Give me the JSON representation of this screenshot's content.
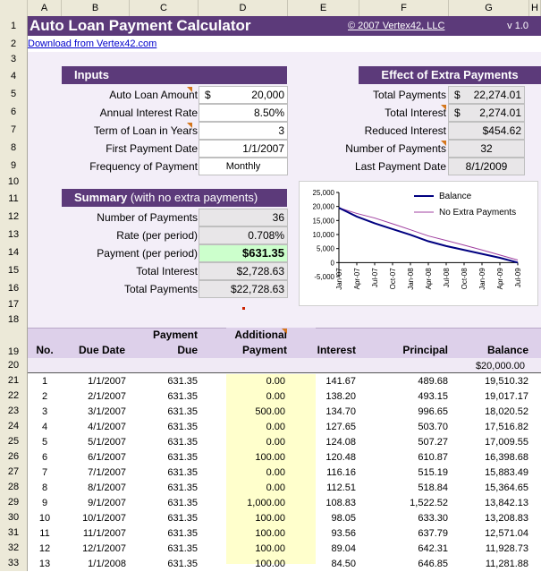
{
  "columns": [
    "A",
    "B",
    "C",
    "D",
    "E",
    "F",
    "G",
    "H"
  ],
  "rows": [
    "1",
    "2",
    "3",
    "4",
    "5",
    "6",
    "7",
    "8",
    "9",
    "10",
    "11",
    "12",
    "13",
    "14",
    "15",
    "16",
    "17",
    "18",
    "19",
    "20",
    "21",
    "22",
    "23",
    "24",
    "25",
    "26",
    "27",
    "28",
    "29",
    "30",
    "31",
    "32",
    "33"
  ],
  "header": {
    "title": "Auto Loan Payment Calculator",
    "copyright": "© 2007 Vertex42, LLC",
    "version": "v 1.0",
    "download_link": "Download from Vertex42.com"
  },
  "inputs": {
    "title": "Inputs",
    "labels": [
      "Auto Loan Amount",
      "Annual Interest Rate",
      "Term of Loan in Years",
      "First Payment Date",
      "Frequency of Payment"
    ],
    "currency_symbol": "$",
    "values": [
      "20,000",
      "8.50%",
      "3",
      "1/1/2007",
      "Monthly"
    ]
  },
  "effect": {
    "title": "Effect of Extra Payments",
    "labels": [
      "Total Payments",
      "Total Interest",
      "Reduced Interest",
      "Number of Payments",
      "Last Payment Date"
    ],
    "currency_symbol": "$",
    "values": [
      "22,274.01",
      "2,274.01",
      "$454.62",
      "32",
      "8/1/2009"
    ]
  },
  "summary": {
    "title": "Summary",
    "subtitle": "(with no extra payments)",
    "labels": [
      "Number of Payments",
      "Rate (per period)",
      "Payment (per period)",
      "Total Interest",
      "Total Payments"
    ],
    "values": [
      "36",
      "0.708%",
      "$631.35",
      "$2,728.63",
      "$22,728.63"
    ]
  },
  "chart_data": {
    "type": "line",
    "title": "",
    "categories": [
      "Jan-07",
      "Apr-07",
      "Jul-07",
      "Oct-07",
      "Jan-08",
      "Apr-08",
      "Jul-08",
      "Oct-08",
      "Jan-09",
      "Apr-09",
      "Jul-09"
    ],
    "y_ticks": [
      "25,000",
      "20,000",
      "15,000",
      "10,000",
      "5,000",
      "0",
      "-5,000"
    ],
    "ylim": [
      -5000,
      25000
    ],
    "legend_position": "top-right",
    "series": [
      {
        "name": "Balance",
        "color": "#000080",
        "values": [
          19510,
          16399,
          14000,
          11928,
          9900,
          7600,
          5900,
          4500,
          3100,
          1700,
          0
        ]
      },
      {
        "name": "No Extra Payments",
        "color": "#a040a0",
        "values": [
          19510,
          17516,
          15884,
          13842,
          11700,
          9500,
          7900,
          6200,
          4500,
          2700,
          900
        ]
      }
    ]
  },
  "table": {
    "headers": {
      "no": "No.",
      "due_date": "Due Date",
      "payment_l1": "Payment",
      "payment_l2": "Due",
      "additional_l1": "Additional",
      "additional_l2": "Payment",
      "interest": "Interest",
      "principal": "Principal",
      "balance": "Balance"
    },
    "start_balance": "$20,000.00",
    "rows": [
      [
        "1",
        "1/1/2007",
        "631.35",
        "0.00",
        "141.67",
        "489.68",
        "19,510.32"
      ],
      [
        "2",
        "2/1/2007",
        "631.35",
        "0.00",
        "138.20",
        "493.15",
        "19,017.17"
      ],
      [
        "3",
        "3/1/2007",
        "631.35",
        "500.00",
        "134.70",
        "996.65",
        "18,020.52"
      ],
      [
        "4",
        "4/1/2007",
        "631.35",
        "0.00",
        "127.65",
        "503.70",
        "17,516.82"
      ],
      [
        "5",
        "5/1/2007",
        "631.35",
        "0.00",
        "124.08",
        "507.27",
        "17,009.55"
      ],
      [
        "6",
        "6/1/2007",
        "631.35",
        "100.00",
        "120.48",
        "610.87",
        "16,398.68"
      ],
      [
        "7",
        "7/1/2007",
        "631.35",
        "0.00",
        "116.16",
        "515.19",
        "15,883.49"
      ],
      [
        "8",
        "8/1/2007",
        "631.35",
        "0.00",
        "112.51",
        "518.84",
        "15,364.65"
      ],
      [
        "9",
        "9/1/2007",
        "631.35",
        "1,000.00",
        "108.83",
        "1,522.52",
        "13,842.13"
      ],
      [
        "10",
        "10/1/2007",
        "631.35",
        "100.00",
        "98.05",
        "633.30",
        "13,208.83"
      ],
      [
        "11",
        "11/1/2007",
        "631.35",
        "100.00",
        "93.56",
        "637.79",
        "12,571.04"
      ],
      [
        "12",
        "12/1/2007",
        "631.35",
        "100.00",
        "89.04",
        "642.31",
        "11,928.73"
      ],
      [
        "13",
        "1/1/2008",
        "631.35",
        "100.00",
        "84.50",
        "646.85",
        "11,281.88"
      ]
    ]
  },
  "colors": {
    "purple": "#5c3a7a",
    "lavender": "#ddd0ea",
    "light_lavender": "#efe8f5",
    "highlight_green": "#ccffcc",
    "yellow_column": "#ffffcc"
  }
}
